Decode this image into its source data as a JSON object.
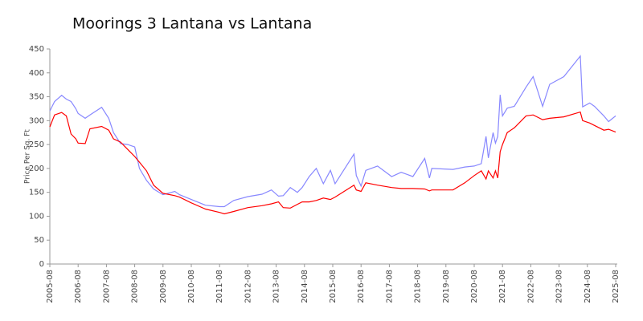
{
  "chart_data": {
    "type": "line",
    "title": "Moorings 3 Lantana vs Lantana",
    "y_label": "Price Per Sq. Ft",
    "x": [
      "2005-08",
      "2005-10",
      "2006-01",
      "2006-03",
      "2006-05",
      "2006-07",
      "2006-08",
      "2006-11",
      "2007-01",
      "2007-06",
      "2007-09",
      "2007-11",
      "2008-02",
      "2008-05",
      "2008-08",
      "2008-10",
      "2009-01",
      "2009-04",
      "2009-08",
      "2010-01",
      "2010-03",
      "2010-08",
      "2011-02",
      "2011-08",
      "2011-10",
      "2012-02",
      "2012-08",
      "2013-02",
      "2013-06",
      "2013-09",
      "2013-11",
      "2014-02",
      "2014-05",
      "2014-07",
      "2014-10",
      "2015-01",
      "2015-04",
      "2015-07",
      "2015-09",
      "2016-05",
      "2016-06",
      "2016-08",
      "2016-10",
      "2017-03",
      "2017-09",
      "2018-01",
      "2018-06",
      "2018-11",
      "2019-01",
      "2019-02",
      "2019-11",
      "2020-04",
      "2020-08",
      "2020-11",
      "2021-01",
      "2021-02",
      "2021-04",
      "2021-05",
      "2021-06",
      "2021-07",
      "2021-08",
      "2021-10",
      "2022-01",
      "2022-06",
      "2022-09",
      "2023-01",
      "2023-04",
      "2023-10",
      "2024-05",
      "2024-06",
      "2024-09",
      "2024-11",
      "2025-03",
      "2025-05",
      "2025-08"
    ],
    "series": [
      {
        "color": "#8888ff",
        "values": [
          320,
          340,
          353,
          345,
          340,
          325,
          315,
          305,
          312,
          328,
          305,
          275,
          252,
          250,
          245,
          200,
          175,
          157,
          145,
          152,
          145,
          135,
          123,
          120,
          120,
          133,
          141,
          146,
          155,
          142,
          143,
          160,
          150,
          160,
          183,
          200,
          168,
          196,
          168,
          230,
          185,
          163,
          196,
          205,
          183,
          192,
          183,
          221,
          180,
          200,
          198,
          203,
          205,
          210,
          267,
          222,
          275,
          253,
          267,
          354,
          310,
          326,
          330,
          370,
          392,
          330,
          376,
          392,
          435,
          329,
          337,
          330,
          310,
          298,
          310
        ]
      },
      {
        "color": "#ff0000",
        "values": [
          287,
          312,
          317,
          310,
          272,
          262,
          253,
          252,
          283,
          288,
          280,
          262,
          255,
          240,
          225,
          213,
          195,
          165,
          148,
          143,
          140,
          128,
          115,
          108,
          105,
          110,
          118,
          122,
          126,
          130,
          118,
          117,
          125,
          130,
          130,
          133,
          138,
          135,
          140,
          165,
          155,
          152,
          170,
          165,
          160,
          158,
          158,
          157,
          153,
          155,
          155,
          170,
          185,
          195,
          178,
          195,
          180,
          195,
          180,
          235,
          250,
          275,
          285,
          310,
          312,
          302,
          305,
          308,
          318,
          300,
          295,
          290,
          280,
          282,
          276
        ]
      }
    ],
    "xlim": [
      "2005-08",
      "2025-08"
    ],
    "xticks": [
      "2005-08",
      "2006-08",
      "2007-08",
      "2008-08",
      "2009-08",
      "2010-08",
      "2011-08",
      "2012-08",
      "2013-08",
      "2014-08",
      "2015-08",
      "2016-08",
      "2017-08",
      "2018-08",
      "2019-08",
      "2020-08",
      "2021-08",
      "2022-08",
      "2023-08",
      "2024-08",
      "2025-08"
    ],
    "ylim": [
      0,
      450
    ],
    "yticks": [
      0,
      50,
      100,
      150,
      200,
      250,
      300,
      350,
      400,
      450
    ],
    "grid": false
  }
}
